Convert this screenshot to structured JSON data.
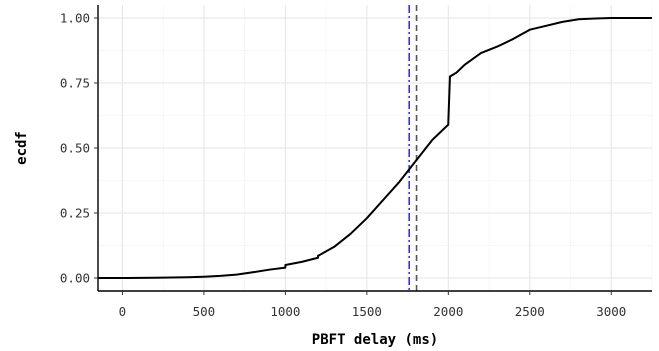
{
  "chart_data": {
    "type": "line",
    "title": "",
    "xlabel": "PBFT delay (ms)",
    "ylabel": "ecdf",
    "xlim": [
      -150,
      3250
    ],
    "ylim": [
      -0.05,
      1.05
    ],
    "x_ticks": [
      0,
      500,
      1000,
      1500,
      2000,
      2500,
      3000
    ],
    "y_ticks": [
      0.0,
      0.25,
      0.5,
      0.75,
      1.0
    ],
    "x_tick_labels": [
      "0",
      "500",
      "1000",
      "1500",
      "2000",
      "2500",
      "3000"
    ],
    "y_tick_labels": [
      "0.00",
      "0.25",
      "0.50",
      "0.75",
      "1.00"
    ],
    "grid": true,
    "series": [
      {
        "color": "#000000",
        "x": [
          -150,
          0,
          200,
          400,
          500,
          600,
          700,
          800,
          900,
          1000,
          1000,
          1100,
          1200,
          1200,
          1300,
          1400,
          1500,
          1600,
          1700,
          1750,
          1800,
          1850,
          1900,
          1950,
          2000,
          2000,
          2010,
          2050,
          2100,
          2200,
          2300,
          2400,
          2500,
          2600,
          2700,
          2800,
          2900,
          3000,
          3250
        ],
        "y": [
          0.0,
          0.0,
          0.001,
          0.003,
          0.005,
          0.008,
          0.013,
          0.022,
          0.032,
          0.04,
          0.05,
          0.062,
          0.078,
          0.085,
          0.12,
          0.17,
          0.23,
          0.3,
          0.37,
          0.41,
          0.45,
          0.49,
          0.53,
          0.56,
          0.59,
          0.6,
          0.775,
          0.79,
          0.82,
          0.865,
          0.89,
          0.92,
          0.955,
          0.97,
          0.985,
          0.995,
          0.998,
          1.0,
          1.0
        ]
      }
    ],
    "reference_lines": [
      {
        "axis": "x",
        "value": 1760,
        "color": "#3333dd",
        "style": "dotdash"
      },
      {
        "axis": "x",
        "value": 1805,
        "color": "#555555",
        "style": "dashed"
      }
    ]
  }
}
